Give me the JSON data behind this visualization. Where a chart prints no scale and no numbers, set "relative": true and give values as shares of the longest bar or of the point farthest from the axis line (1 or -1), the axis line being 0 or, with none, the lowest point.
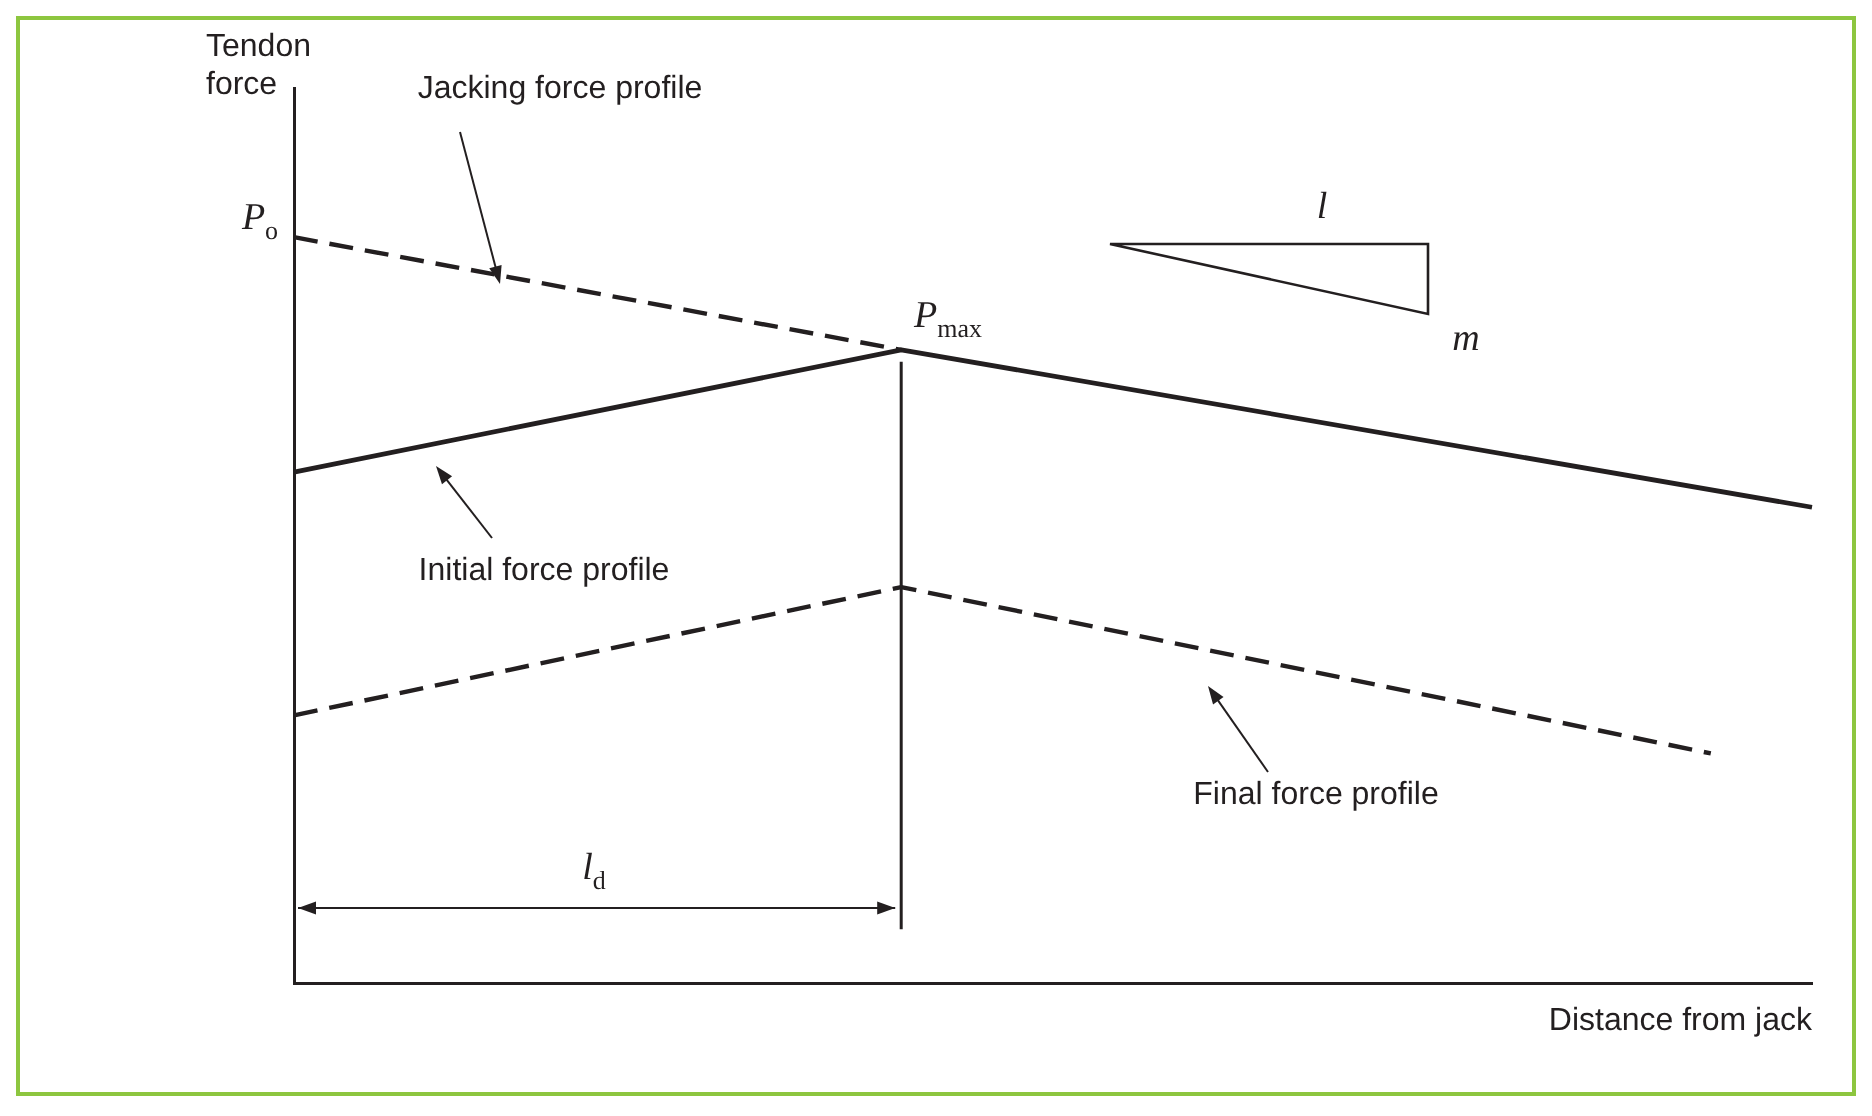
{
  "chart_data": {
    "type": "line",
    "relative": true,
    "xlabel": "Distance from jack",
    "ylabel": "Tendon force",
    "legend": false,
    "marker": "none",
    "categories": [
      null,
      null,
      null,
      null,
      null,
      null,
      null,
      null,
      null,
      null,
      null,
      null,
      null,
      null,
      null,
      null
    ],
    "series": [
      {
        "color": "#231f20",
        "line_style": "dashed",
        "values": [
          1,
          null,
          null,
          null,
          null,
          null,
          0.849,
          null,
          null,
          null,
          null,
          null,
          null,
          null,
          null,
          null
        ]
      },
      {
        "color": "#231f20",
        "line_style": "solid",
        "values": [
          0.685,
          null,
          null,
          null,
          null,
          null,
          0.849,
          null,
          null,
          null,
          null,
          null,
          null,
          null,
          null,
          0.638
        ]
      },
      {
        "color": "#231f20",
        "line_style": "dashed",
        "values": [
          0.359,
          null,
          null,
          null,
          null,
          null,
          0.531,
          null,
          null,
          null,
          null,
          null,
          null,
          null,
          0.308,
          null
        ]
      }
    ],
    "annotations": [
      "Jacking force profile",
      "Initial force profile",
      "Final force profile",
      "P$_{o}$",
      "P$_{max}$",
      "l$_{d}$",
      "l",
      "m"
    ]
  }
}
